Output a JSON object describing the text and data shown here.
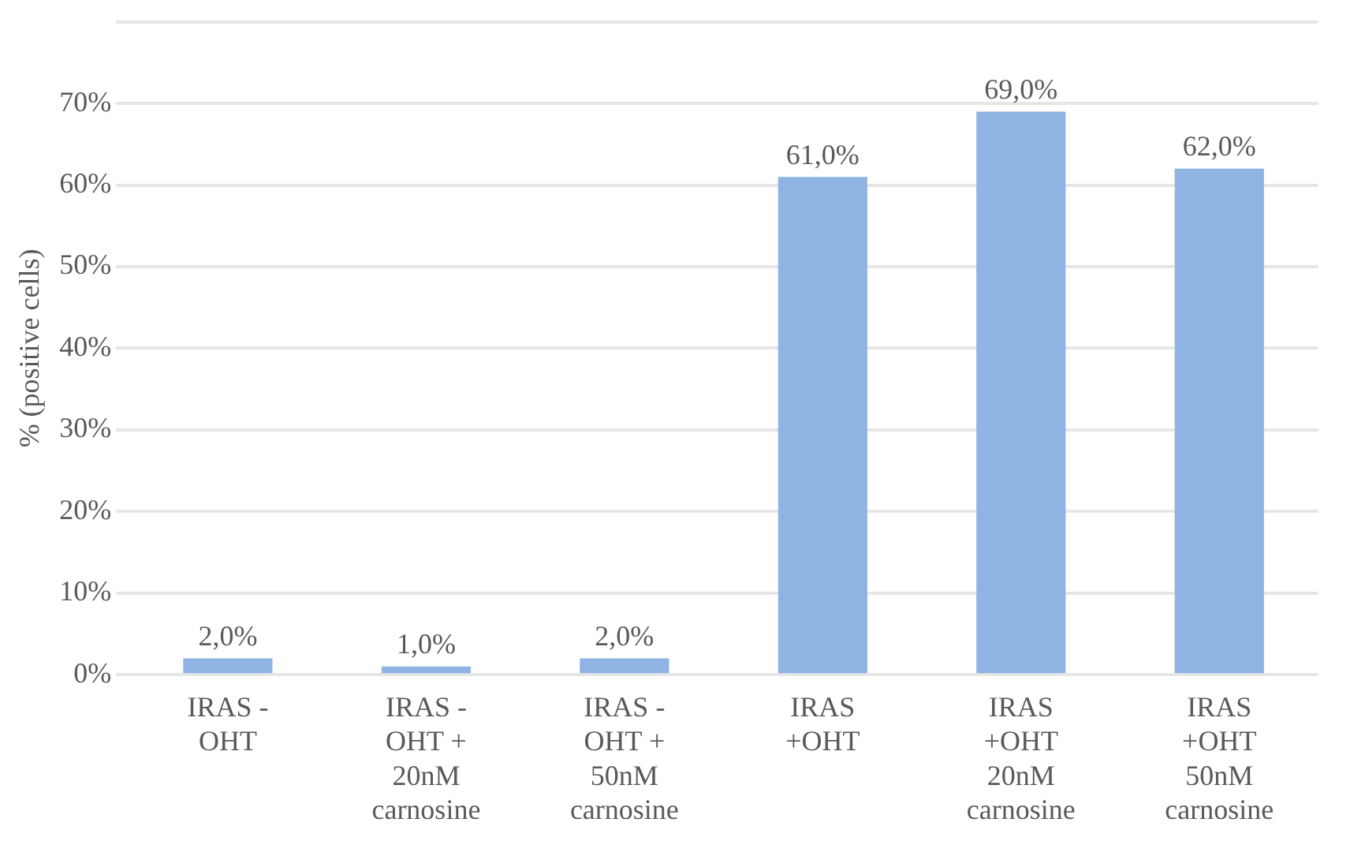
{
  "chart_data": {
    "type": "bar",
    "ylabel": "% (positive cells)",
    "categories": [
      "IRAS - OHT",
      "IRAS - OHT + 20nM carnosine",
      "IRAS - OHT + 50nM carnosine",
      "IRAS +OHT",
      "IRAS +OHT 20nM carnosine",
      "IRAS +OHT 50nM carnosine"
    ],
    "values": [
      2,
      1,
      2,
      61,
      69,
      62
    ],
    "value_labels": [
      "2,0%",
      "1,0%",
      "2,0%",
      "61,0%",
      "69,0%",
      "62,0%"
    ],
    "color": "#8fb3e2",
    "ylim": [
      0,
      80
    ],
    "yticks": [
      {
        "value": 0,
        "label": "0%"
      },
      {
        "value": 10,
        "label": "10%"
      },
      {
        "value": 20,
        "label": "20%"
      },
      {
        "value": 30,
        "label": "30%"
      },
      {
        "value": 40,
        "label": "40%"
      },
      {
        "value": 50,
        "label": "50%"
      },
      {
        "value": 60,
        "label": "60%"
      },
      {
        "value": 70,
        "label": "70%"
      },
      {
        "value": 80,
        "label": null
      }
    ],
    "grid": "y",
    "legend": false
  }
}
